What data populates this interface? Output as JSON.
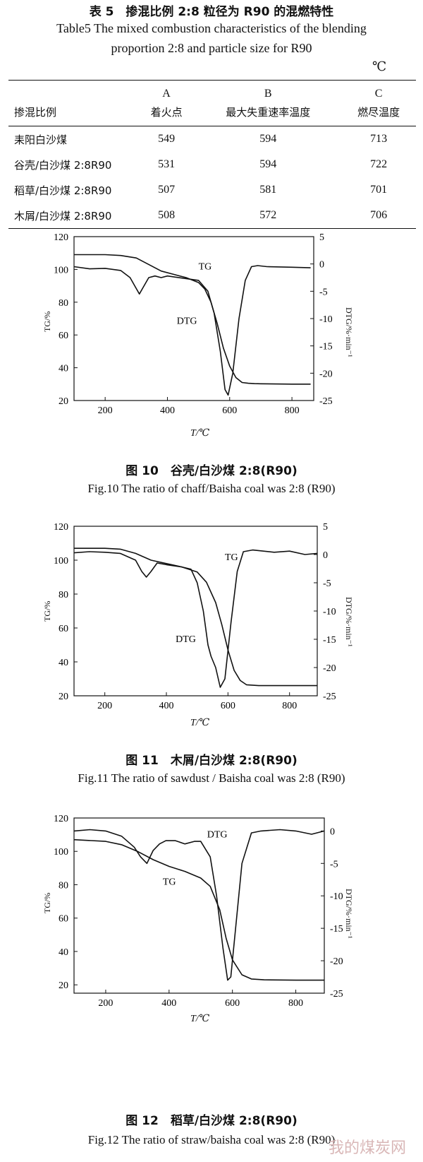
{
  "table": {
    "caption_cn": "表 5　掺混比例 2:8 粒径为 R90 的混燃特性",
    "caption_en_1": "Table5 The mixed combustion characteristics of the blending",
    "caption_en_2": "proportion 2:8 and particle size for R90",
    "unit": "℃",
    "headers": {
      "row_label": "掺混比例",
      "a_letter": "A",
      "a_name": "着火点",
      "b_letter": "B",
      "b_name": "最大失重速率温度",
      "c_letter": "C",
      "c_name": "燃尽温度"
    },
    "rows": [
      {
        "label": "耒阳白沙煤",
        "a": "549",
        "b": "594",
        "c": "713"
      },
      {
        "label": "谷壳/白沙煤 2:8R90",
        "a": "531",
        "b": "594",
        "c": "722"
      },
      {
        "label": "稻草/白沙煤 2:8R90",
        "a": "507",
        "b": "581",
        "c": "701"
      },
      {
        "label": "木屑/白沙煤 2:8R90",
        "a": "508",
        "b": "572",
        "c": "706"
      }
    ]
  },
  "chart_data": [
    {
      "type": "line",
      "caption_cn": "图 10　谷壳/白沙煤 2:8(R90)",
      "caption_en": "Fig.10 The ratio of chaff/Baisha coal was 2:8 (R90)",
      "xlabel": "T/℃",
      "ylabel_left": "TG/%",
      "ylabel_right": "DTG/%·min⁻¹",
      "xlim": [
        100,
        870
      ],
      "ylim_left": [
        20,
        120
      ],
      "ylim_right": [
        -25,
        5
      ],
      "x_ticks": [
        "200",
        "400",
        "600",
        "800"
      ],
      "y_ticks_left": [
        "20",
        "40",
        "60",
        "80",
        "100",
        "120"
      ],
      "y_ticks_right": [
        "5",
        "0",
        "-5",
        "-10",
        "-15",
        "-20",
        "-25"
      ],
      "series": [
        {
          "name": "TG",
          "axis": "left",
          "x": [
            100,
            200,
            250,
            300,
            340,
            380,
            420,
            460,
            500,
            520,
            540,
            560,
            580,
            600,
            620,
            640,
            660,
            680,
            700,
            750,
            800,
            860
          ],
          "y": [
            109,
            109,
            108.5,
            107,
            103,
            99,
            97,
            95,
            92,
            88,
            80,
            67,
            52,
            41,
            34,
            31,
            30.5,
            30.3,
            30.2,
            30.1,
            30,
            30
          ]
        },
        {
          "name": "DTG",
          "axis": "right",
          "x": [
            100,
            150,
            200,
            250,
            280,
            300,
            310,
            320,
            340,
            360,
            380,
            400,
            450,
            500,
            530,
            550,
            570,
            585,
            595,
            610,
            630,
            650,
            670,
            690,
            720,
            800,
            860
          ],
          "y": [
            -0.5,
            -0.9,
            -0.8,
            -1.2,
            -2.5,
            -4.5,
            -5.5,
            -4.5,
            -2.5,
            -2.2,
            -2.5,
            -2.2,
            -2.6,
            -3,
            -5,
            -9,
            -16,
            -23,
            -24,
            -20,
            -10,
            -3,
            -0.5,
            -0.3,
            -0.5,
            -0.6,
            -0.7
          ]
        }
      ]
    },
    {
      "type": "line",
      "caption_cn": "图 11　木屑/白沙煤 2:8(R90)",
      "caption_en": "Fig.11 The ratio of sawdust / Baisha coal was 2:8 (R90)",
      "xlabel": "T/℃",
      "ylabel_left": "TG/%",
      "ylabel_right": "DTG/%·min⁻¹",
      "xlim": [
        100,
        890
      ],
      "ylim_left": [
        20,
        120
      ],
      "ylim_right": [
        -25,
        5
      ],
      "x_ticks": [
        "200",
        "400",
        "600",
        "800"
      ],
      "y_ticks_left": [
        "20",
        "40",
        "60",
        "80",
        "100",
        "120"
      ],
      "y_ticks_right": [
        "5",
        "0",
        "-5",
        "-10",
        "-15",
        "-20",
        "-25"
      ],
      "series": [
        {
          "name": "TG",
          "axis": "left",
          "x": [
            100,
            200,
            250,
            300,
            350,
            400,
            450,
            500,
            530,
            560,
            580,
            600,
            620,
            640,
            660,
            700,
            800,
            890
          ],
          "y": [
            107,
            107,
            106.5,
            104,
            100,
            98,
            96,
            93,
            87,
            75,
            62,
            47,
            35,
            29,
            26.5,
            26,
            26,
            26
          ]
        },
        {
          "name": "DTG",
          "axis": "right",
          "x": [
            100,
            150,
            200,
            250,
            300,
            320,
            335,
            350,
            370,
            400,
            450,
            480,
            500,
            520,
            535,
            545,
            560,
            575,
            590,
            610,
            630,
            650,
            680,
            750,
            800,
            850,
            890
          ],
          "y": [
            0.3,
            0.5,
            0.4,
            0.2,
            -1,
            -3,
            -4,
            -3,
            -1.5,
            -1.8,
            -2.2,
            -2.6,
            -5,
            -10,
            -16,
            -18,
            -20,
            -23.5,
            -22,
            -12,
            -3,
            0.5,
            0.8,
            0.4,
            0.6,
            0,
            0.2
          ]
        }
      ]
    },
    {
      "type": "line",
      "caption_cn": "图 12　稻草/白沙煤 2:8(R90)",
      "caption_en": "Fig.12 The ratio of straw/baisha coal was 2:8 (R90)",
      "xlabel": "T/℃",
      "ylabel_left": "TG/%",
      "ylabel_right": "DTG/%·min⁻¹",
      "xlim": [
        100,
        890
      ],
      "ylim_left": [
        15,
        120
      ],
      "ylim_right": [
        -25,
        2
      ],
      "x_ticks": [
        "200",
        "400",
        "600",
        "800"
      ],
      "y_ticks_left": [
        "20",
        "40",
        "60",
        "80",
        "100",
        "120"
      ],
      "y_ticks_right": [
        "0",
        "-5",
        "-10",
        "-15",
        "-20",
        "-25"
      ],
      "series": [
        {
          "name": "TG",
          "axis": "left",
          "x": [
            100,
            200,
            250,
            300,
            350,
            400,
            450,
            500,
            530,
            560,
            580,
            600,
            630,
            660,
            700,
            800,
            890
          ],
          "y": [
            107,
            106,
            104,
            100,
            95,
            91,
            88,
            84,
            79,
            65,
            48,
            35,
            26,
            23.5,
            23,
            22.8,
            22.8
          ]
        },
        {
          "name": "DTG",
          "axis": "right",
          "x": [
            100,
            150,
            200,
            250,
            290,
            310,
            330,
            350,
            370,
            390,
            420,
            450,
            480,
            500,
            530,
            550,
            570,
            585,
            595,
            610,
            630,
            660,
            690,
            750,
            800,
            850,
            890
          ],
          "y": [
            0,
            0.2,
            0,
            -0.8,
            -2.5,
            -4,
            -5,
            -3,
            -2,
            -1.5,
            -1.5,
            -2,
            -1.6,
            -1.6,
            -4,
            -10,
            -18,
            -23,
            -22.5,
            -15,
            -5,
            -0.3,
            0,
            0.2,
            0,
            -0.5,
            0
          ]
        }
      ]
    }
  ],
  "watermark": "我的煤炭网"
}
